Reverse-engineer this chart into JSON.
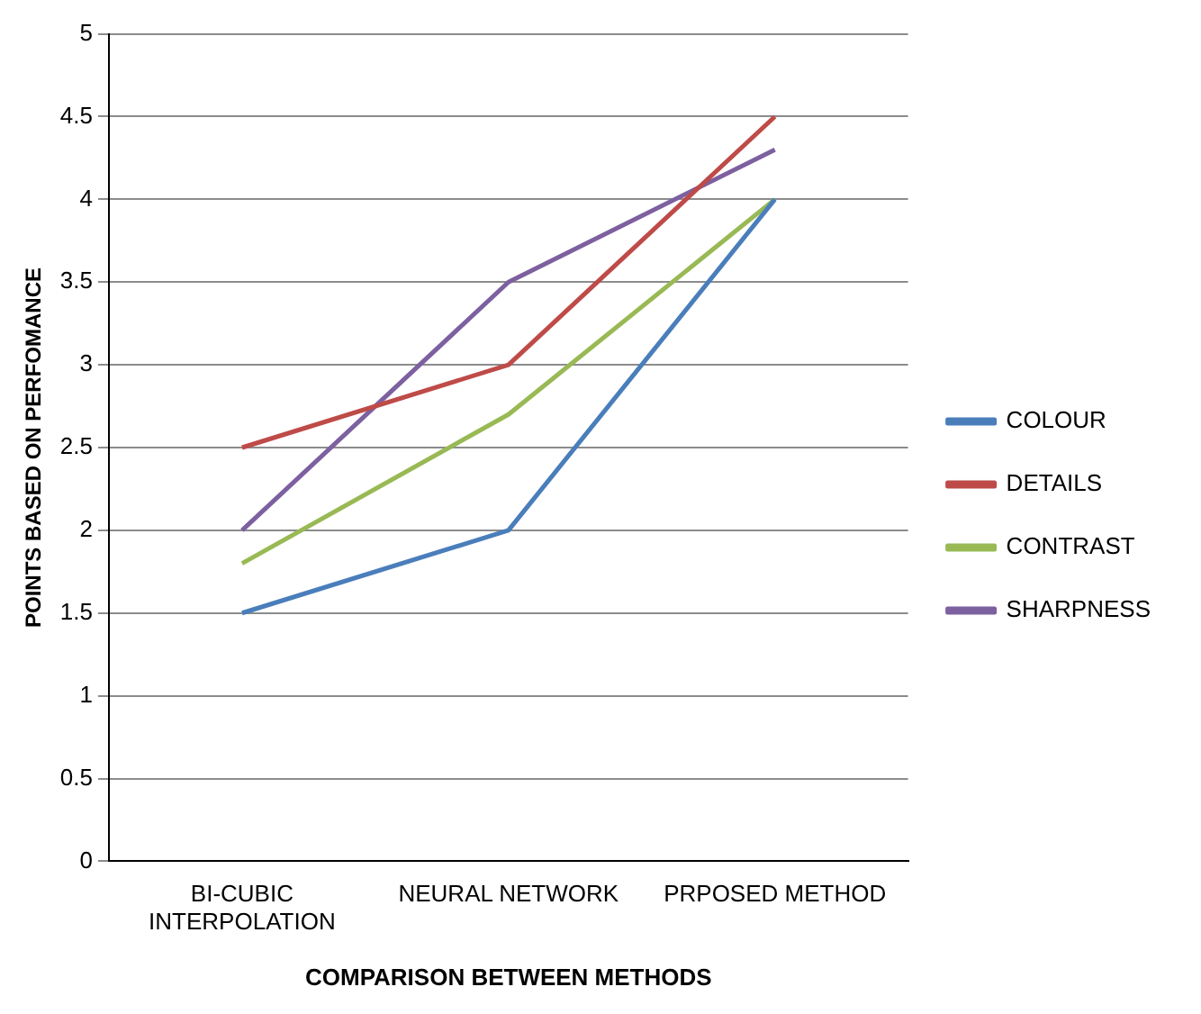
{
  "chart_data": {
    "type": "line",
    "xlabel": "COMPARISON BETWEEN METHODS",
    "ylabel": "POINTS BASED ON PERFOMANCE",
    "categories": [
      "BI-CUBIC INTERPOLATION",
      "NEURAL NETWORK",
      "PRPOSED METHOD"
    ],
    "series": [
      {
        "name": "COLOUR",
        "color": "#4a7ebb",
        "values": [
          1.5,
          2,
          4
        ]
      },
      {
        "name": "DETAILS",
        "color": "#be4b48",
        "values": [
          2.5,
          3,
          4.5
        ]
      },
      {
        "name": "CONTRAST",
        "color": "#98b954",
        "values": [
          1.8,
          2.7,
          4
        ]
      },
      {
        "name": "SHARPNESS",
        "color": "#7d60a0",
        "values": [
          2,
          3.5,
          4.3
        ]
      }
    ],
    "ylim": [
      0,
      5
    ],
    "yticks": [
      0,
      0.5,
      1,
      1.5,
      2,
      2.5,
      3,
      3.5,
      4,
      4.5,
      5
    ],
    "grid": "y",
    "legend": "right",
    "marker": "none",
    "line_style": "solid"
  }
}
